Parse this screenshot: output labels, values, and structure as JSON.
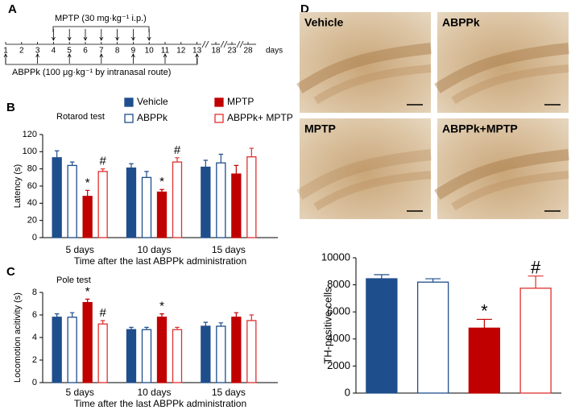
{
  "panel_labels": [
    "A",
    "B",
    "C",
    "D"
  ],
  "timeline": {
    "title": "MPTP (30 mg·kg⁻¹ i.p.)",
    "days": [
      "1",
      "2",
      "3",
      "4",
      "5",
      "6",
      "7",
      "8",
      "9",
      "10",
      "11",
      "12",
      "13",
      "18",
      "23",
      "28",
      "days"
    ],
    "caption": "ABPPk (100 μg·kg⁻¹ by intranasal route)"
  },
  "micrographs": [
    "Vehicle",
    "ABPPk",
    "MPTP",
    "ABPPk+MPTP"
  ],
  "chart_data": [
    {
      "type": "bar",
      "subtitle": "Rotarod test",
      "ylabel": "Latency (s)",
      "xlabel": "Time after the last ABPPk administration",
      "categories": [
        "5 days",
        "10 days",
        "15 days"
      ],
      "ylim": [
        0,
        120
      ],
      "yticks": [
        0,
        20,
        40,
        60,
        80,
        100,
        120
      ],
      "series": [
        {
          "name": "Vehicle",
          "color": "#1f4e8c",
          "fill": "#1f4e8c",
          "values": [
            93,
            81,
            82
          ],
          "errors": [
            8,
            5,
            8
          ]
        },
        {
          "name": "ABPPk",
          "color": "#1f4e8c",
          "fill": "#ffffff",
          "values": [
            84,
            70,
            87
          ],
          "errors": [
            4,
            7,
            10
          ]
        },
        {
          "name": "MPTP",
          "color": "#c00000",
          "fill": "#c00000",
          "values": [
            48,
            53,
            74
          ],
          "errors": [
            7,
            3,
            10
          ],
          "sig": [
            "*",
            "*",
            null
          ]
        },
        {
          "name": "ABPPk+ MPTP",
          "color": "#e03030",
          "fill": "#ffffff",
          "values": [
            77,
            88,
            94
          ],
          "errors": [
            3,
            5,
            10
          ],
          "sig": [
            "#",
            "#",
            null
          ]
        }
      ]
    },
    {
      "type": "bar",
      "subtitle": "Pole test",
      "ylabel": "Locomotion acitivity (s)",
      "xlabel": "Time after the last ABPPk administration",
      "categories": [
        "5 days",
        "10 days",
        "15 days"
      ],
      "ylim": [
        0,
        8
      ],
      "yticks": [
        0,
        2,
        4,
        6,
        8
      ],
      "series": [
        {
          "color": "#1f4e8c",
          "fill": "#1f4e8c",
          "values": [
            5.8,
            4.7,
            5.0
          ],
          "errors": [
            0.3,
            0.2,
            0.35
          ]
        },
        {
          "color": "#1f4e8c",
          "fill": "#ffffff",
          "values": [
            5.8,
            4.7,
            5.0
          ],
          "errors": [
            0.4,
            0.2,
            0.3
          ]
        },
        {
          "color": "#c00000",
          "fill": "#c00000",
          "values": [
            7.1,
            5.8,
            5.8
          ],
          "errors": [
            0.3,
            0.3,
            0.4
          ],
          "sig": [
            "*",
            "*",
            null
          ]
        },
        {
          "color": "#e03030",
          "fill": "#ffffff",
          "values": [
            5.2,
            4.7,
            5.5
          ],
          "errors": [
            0.3,
            0.2,
            0.5
          ],
          "sig": [
            "#",
            null,
            null
          ]
        }
      ]
    },
    {
      "type": "bar",
      "ylabel": "TH-positive cells",
      "ylim": [
        0,
        10000
      ],
      "yticks": [
        0,
        2000,
        4000,
        6000,
        8000,
        10000
      ],
      "values": [
        8450,
        8200,
        4800,
        7750
      ],
      "errors": [
        300,
        250,
        650,
        900
      ],
      "colors": [
        "#1f4e8c",
        "#1f4e8c",
        "#c00000",
        "#e03030"
      ],
      "fills": [
        "#1f4e8c",
        "#ffffff",
        "#c00000",
        "#ffffff"
      ],
      "sig": [
        null,
        null,
        "*",
        "#"
      ]
    }
  ]
}
